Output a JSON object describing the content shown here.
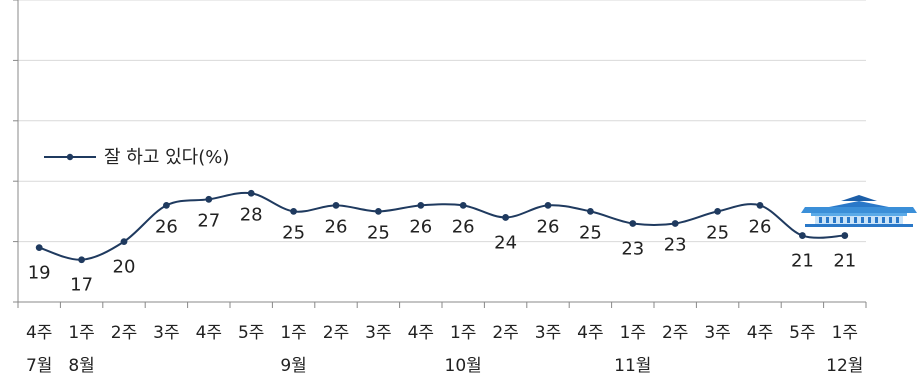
{
  "chart_data": {
    "type": "line",
    "categories": [
      {
        "week": "4주",
        "month": "7월"
      },
      {
        "week": "1주",
        "month": "8월"
      },
      {
        "week": "2주",
        "month": ""
      },
      {
        "week": "3주",
        "month": ""
      },
      {
        "week": "4주",
        "month": ""
      },
      {
        "week": "5주",
        "month": ""
      },
      {
        "week": "1주",
        "month": "9월"
      },
      {
        "week": "2주",
        "month": ""
      },
      {
        "week": "3주",
        "month": ""
      },
      {
        "week": "4주",
        "month": ""
      },
      {
        "week": "1주",
        "month": "10월"
      },
      {
        "week": "2주",
        "month": ""
      },
      {
        "week": "3주",
        "month": ""
      },
      {
        "week": "4주",
        "month": ""
      },
      {
        "week": "1주",
        "month": "11월"
      },
      {
        "week": "2주",
        "month": ""
      },
      {
        "week": "3주",
        "month": ""
      },
      {
        "week": "4주",
        "month": ""
      },
      {
        "week": "5주",
        "month": ""
      },
      {
        "week": "1주",
        "month": "12월"
      }
    ],
    "series": [
      {
        "name": "잘 하고 있다(%)",
        "values": [
          19,
          17,
          20,
          26,
          27,
          28,
          25,
          26,
          25,
          26,
          26,
          24,
          26,
          25,
          23,
          23,
          25,
          26,
          21,
          21
        ],
        "color": "#1f3a5f"
      }
    ],
    "ylim": [
      10,
      60
    ],
    "grid": true,
    "legend": "middle-left",
    "decoration_icon": "blue-house-building-icon"
  }
}
